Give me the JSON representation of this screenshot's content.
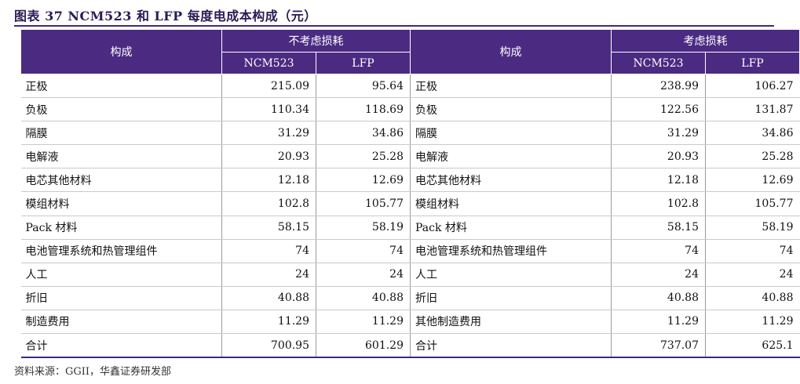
{
  "title": "图表 37 NCM523 和 LFP 每度电成本构成（元）",
  "headers": {
    "component": "构成",
    "group_left": "不考虑损耗",
    "group_right": "考虑损耗",
    "ncm": "NCM523",
    "lfp": "LFP"
  },
  "rows": [
    {
      "left_name": "正极",
      "l_ncm": "215.09",
      "l_lfp": "95.64",
      "right_name": "正极",
      "r_ncm": "238.99",
      "r_lfp": "106.27"
    },
    {
      "left_name": "负极",
      "l_ncm": "110.34",
      "l_lfp": "118.69",
      "right_name": "负极",
      "r_ncm": "122.56",
      "r_lfp": "131.87"
    },
    {
      "left_name": "隔膜",
      "l_ncm": "31.29",
      "l_lfp": "34.86",
      "right_name": "隔膜",
      "r_ncm": "31.29",
      "r_lfp": "34.86"
    },
    {
      "left_name": "电解液",
      "l_ncm": "20.93",
      "l_lfp": "25.28",
      "right_name": "电解液",
      "r_ncm": "20.93",
      "r_lfp": "25.28"
    },
    {
      "left_name": "电芯其他材料",
      "l_ncm": "12.18",
      "l_lfp": "12.69",
      "right_name": "电芯其他材料",
      "r_ncm": "12.18",
      "r_lfp": "12.69"
    },
    {
      "left_name": "模组材料",
      "l_ncm": "102.8",
      "l_lfp": "105.77",
      "right_name": "模组材料",
      "r_ncm": "102.8",
      "r_lfp": "105.77"
    },
    {
      "left_name": "Pack 材料",
      "l_ncm": "58.15",
      "l_lfp": "58.19",
      "right_name": "Pack 材料",
      "r_ncm": "58.15",
      "r_lfp": "58.19"
    },
    {
      "left_name": "电池管理系统和热管理组件",
      "l_ncm": "74",
      "l_lfp": "74",
      "right_name": "电池管理系统和热管理组件",
      "r_ncm": "74",
      "r_lfp": "74"
    },
    {
      "left_name": "人工",
      "l_ncm": "24",
      "l_lfp": "24",
      "right_name": "人工",
      "r_ncm": "24",
      "r_lfp": "24"
    },
    {
      "left_name": "折旧",
      "l_ncm": "40.88",
      "l_lfp": "40.88",
      "right_name": "折旧",
      "r_ncm": "40.88",
      "r_lfp": "40.88"
    },
    {
      "left_name": "制造费用",
      "l_ncm": "11.29",
      "l_lfp": "11.29",
      "right_name": "其他制造费用",
      "r_ncm": "11.29",
      "r_lfp": "11.29"
    },
    {
      "left_name": "合计",
      "l_ncm": "700.95",
      "l_lfp": "601.29",
      "right_name": "合计",
      "r_ncm": "737.07",
      "r_lfp": "625.1"
    }
  ],
  "source": "资料来源：GGII，华鑫证券研发部",
  "colors": {
    "header_bg": "#4b2a82",
    "title": "#2b1a55",
    "rule": "#3d2a78"
  }
}
